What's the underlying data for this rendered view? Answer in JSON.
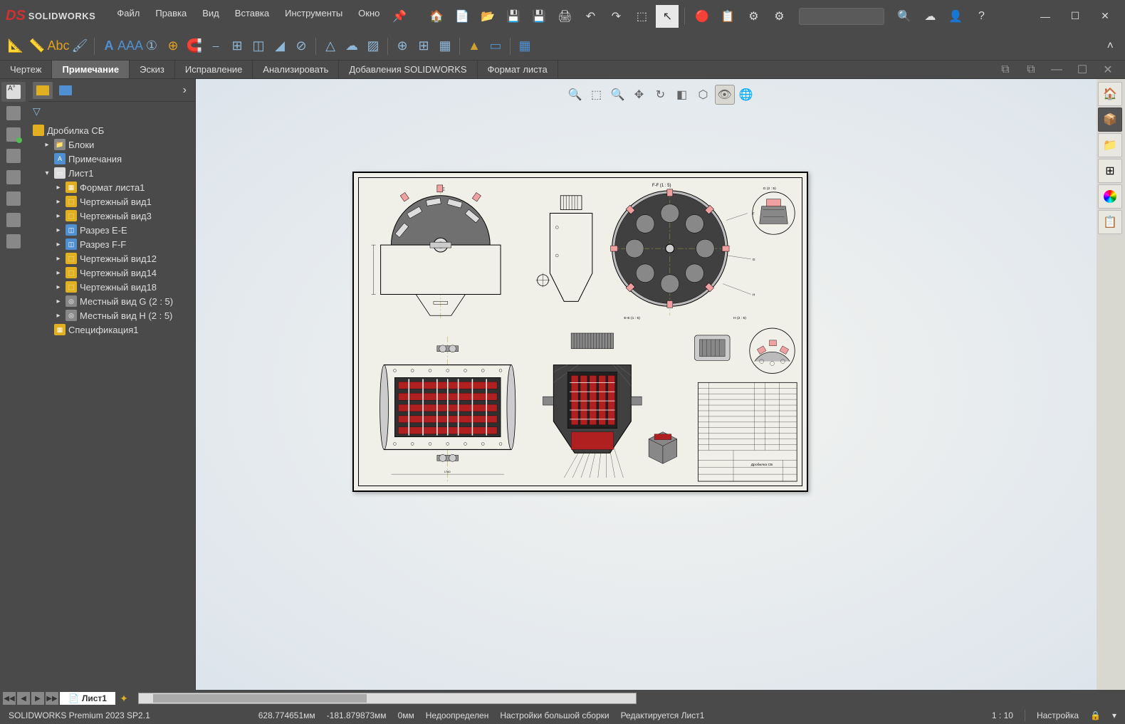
{
  "app": {
    "logo_text": "SOLIDWORKS",
    "version_line": "SOLIDWORKS Premium 2023 SP2.1"
  },
  "menu": {
    "items": [
      "Файл",
      "Правка",
      "Вид",
      "Вставка",
      "Инструменты",
      "Окно"
    ]
  },
  "tabs": {
    "items": [
      "Чертеж",
      "Примечание",
      "Эскиз",
      "Исправление",
      "Анализировать",
      "Добавления SOLIDWORKS",
      "Формат листа"
    ],
    "active_index": 1
  },
  "tree": {
    "root": "Дробилка СБ",
    "items": [
      {
        "label": "Блоки",
        "indent": 1,
        "icon": "folder",
        "toggle": "▸"
      },
      {
        "label": "Примечания",
        "indent": 1,
        "icon": "note",
        "toggle": ""
      },
      {
        "label": "Лист1",
        "indent": 1,
        "icon": "sheet",
        "toggle": "▾"
      },
      {
        "label": "Формат листа1",
        "indent": 2,
        "icon": "format",
        "toggle": "▸"
      },
      {
        "label": "Чертежный вид1",
        "indent": 2,
        "icon": "view",
        "toggle": "▸"
      },
      {
        "label": "Чертежный вид3",
        "indent": 2,
        "icon": "view",
        "toggle": "▸"
      },
      {
        "label": "Разрез E-E",
        "indent": 2,
        "icon": "section",
        "toggle": "▸"
      },
      {
        "label": "Разрез F-F",
        "indent": 2,
        "icon": "section",
        "toggle": "▸"
      },
      {
        "label": "Чертежный вид12",
        "indent": 2,
        "icon": "view",
        "toggle": "▸"
      },
      {
        "label": "Чертежный вид14",
        "indent": 2,
        "icon": "view",
        "toggle": "▸"
      },
      {
        "label": "Чертежный вид18",
        "indent": 2,
        "icon": "view",
        "toggle": "▸"
      },
      {
        "label": "Местный вид G (2 : 5)",
        "indent": 2,
        "icon": "detail",
        "toggle": "▸"
      },
      {
        "label": "Местный вид H (2 : 5)",
        "indent": 2,
        "icon": "detail",
        "toggle": "▸"
      },
      {
        "label": "Спецификация1",
        "indent": 1,
        "icon": "bom",
        "toggle": ""
      }
    ]
  },
  "drawing": {
    "labels": {
      "ff": "F-F (1 : 5)",
      "ee": "E-E (1 : 5)",
      "g": "G (2 : 5)",
      "h": "H (2 : 5)",
      "title": "Дробилка СБ",
      "e_arrow": "E",
      "f_arrow": "F"
    },
    "colors": {
      "sheet_bg": "#f0efe8",
      "line": "#000000",
      "section_fill": "#b02020",
      "section_dark": "#404040",
      "accent": "#f0a0a0",
      "yellow": "#e0c040",
      "centerline": "#b0a040",
      "detail_border": "#b0a040"
    }
  },
  "sheet_tabs": {
    "active": "Лист1"
  },
  "status": {
    "coord_x": "628.774651мм",
    "coord_y": "-181.879873мм",
    "dim": "0мм",
    "state": "Недоопределен",
    "assembly": "Настройки большой сборки",
    "editing": "Редактируется Лист1",
    "scale": "1 : 10",
    "custom": "Настройка"
  },
  "window_controls": {
    "minimize": "—",
    "maximize": "☐",
    "close": "✕"
  }
}
